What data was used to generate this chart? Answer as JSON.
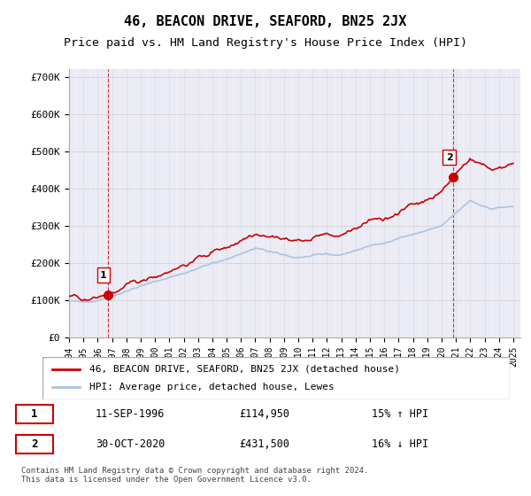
{
  "title": "46, BEACON DRIVE, SEAFORD, BN25 2JX",
  "subtitle": "Price paid vs. HM Land Registry's House Price Index (HPI)",
  "ylabel_ticks": [
    "£0",
    "£100K",
    "£200K",
    "£300K",
    "£400K",
    "£500K",
    "£600K",
    "£700K"
  ],
  "ytick_values": [
    0,
    100000,
    200000,
    300000,
    400000,
    500000,
    600000,
    700000
  ],
  "ylim": [
    0,
    720000
  ],
  "xlim_start": 1994.0,
  "xlim_end": 2025.5,
  "hpi_color": "#aac4e0",
  "price_color": "#cc0000",
  "dashed_color": "#cc0000",
  "marker1_color": "#cc0000",
  "marker2_color": "#cc0000",
  "background_plot": "#f0f0f0",
  "background_hatch": "#e8e8f8",
  "sale1_x": 1996.7,
  "sale1_y": 114950,
  "sale1_label": "1",
  "sale2_x": 2020.83,
  "sale2_y": 431500,
  "sale2_label": "2",
  "legend_entry1": "46, BEACON DRIVE, SEAFORD, BN25 2JX (detached house)",
  "legend_entry2": "HPI: Average price, detached house, Lewes",
  "table_row1": [
    "1",
    "11-SEP-1996",
    "£114,950",
    "15% ↑ HPI"
  ],
  "table_row2": [
    "2",
    "30-OCT-2020",
    "£431,500",
    "16% ↓ HPI"
  ],
  "footnote": "Contains HM Land Registry data © Crown copyright and database right 2024.\nThis data is licensed under the Open Government Licence v3.0.",
  "title_fontsize": 11,
  "subtitle_fontsize": 9.5,
  "tick_fontsize": 8,
  "dashed_vline1_x": 1996.7,
  "dashed_vline2_x": 2020.83
}
